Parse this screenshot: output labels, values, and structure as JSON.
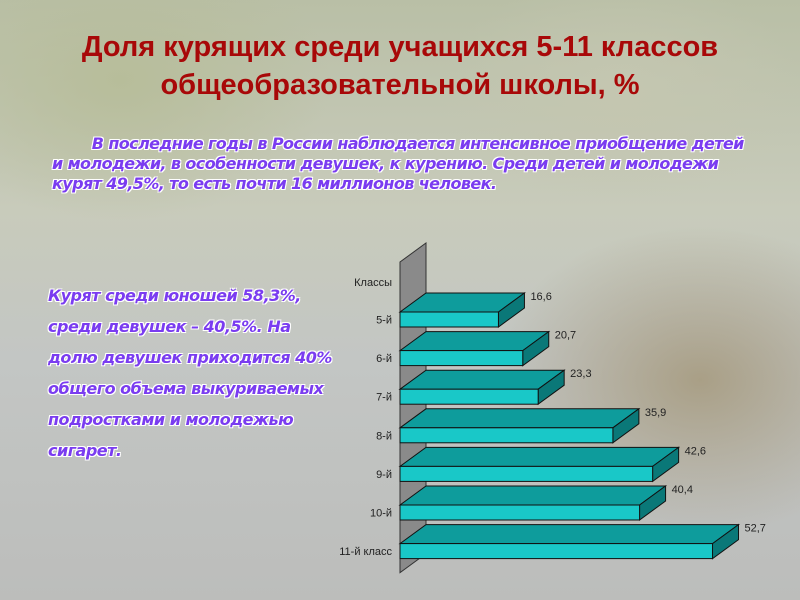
{
  "title": "Доля курящих среди учащихся 5-11 классов общеобразовательной школы, %",
  "intro": "В последние годы в России наблюдается интенсивное приобщение детей и молодежи, в особенности девушек, к курению. Среди детей и молодежи курят 49,5%, то есть почти 16 миллионов человек.",
  "side_text": "Курят среди юношей 58,3%, среди девушек – 40,5%. На долю девушек приходится 40% общего объема выкуриваемых подростками и молодежью сигарет.",
  "colors": {
    "title": "#a80808",
    "text": "#7a3cf0",
    "bar": "#19c8c8",
    "bar_top": "#0e9c9c",
    "wall": "#8a8a8a"
  },
  "chart_data": {
    "type": "bar",
    "orientation": "horizontal",
    "style": "3d",
    "ylabel": "Классы",
    "categories": [
      "5-й",
      "6-й",
      "7-й",
      "8-й",
      "9-й",
      "10-й",
      "11-й класс"
    ],
    "values": [
      16.6,
      20.7,
      23.3,
      35.9,
      42.6,
      40.4,
      52.7
    ],
    "value_labels": [
      "16,6",
      "20,7",
      "23,3",
      "35,9",
      "42,6",
      "40,4",
      "52,7"
    ],
    "grid": false,
    "legend": "none"
  }
}
